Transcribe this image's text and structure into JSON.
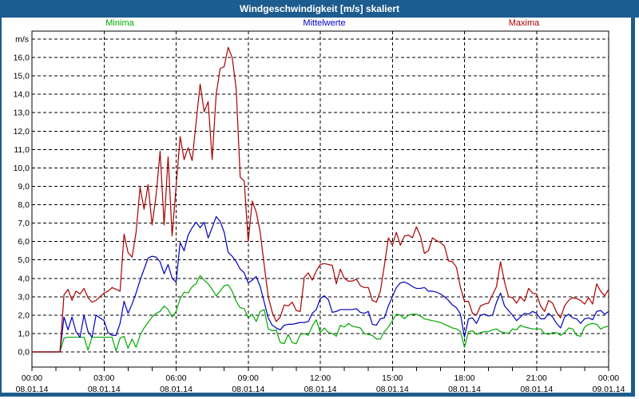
{
  "title_bar": {
    "text": "Windgeschwindigkeit [m/s] skaliert",
    "bg": "#1d5c8e",
    "fg": "#ffffff"
  },
  "legend": [
    {
      "label": "Minima",
      "color": "#00a800"
    },
    {
      "label": "Mittelwerte",
      "color": "#0000c0"
    },
    {
      "label": "Maxima",
      "color": "#a80000"
    }
  ],
  "chart_data": {
    "type": "line",
    "title": "Windgeschwindigkeit [m/s] skaliert",
    "ylabel": "m/s",
    "ylim": [
      0,
      17
    ],
    "ytick_step": 1.0,
    "grid": "dashed",
    "legend_position": "top",
    "y_axis": {
      "unit_label": "m/s",
      "ticks": [
        "16,0",
        "15,0",
        "14,0",
        "13,0",
        "12,0",
        "11,0",
        "10,0",
        "9,0",
        "8,0",
        "7,0",
        "6,0",
        "5,0",
        "4,0",
        "3,0",
        "2,0",
        "1,0",
        "0,0"
      ]
    },
    "x_axis": {
      "hours_span": 24,
      "sample_interval_minutes": 10,
      "ticks": [
        {
          "hour": 0,
          "time": "00:00",
          "date": "08.01.14"
        },
        {
          "hour": 3,
          "time": "03:00",
          "date": "08.01.14"
        },
        {
          "hour": 6,
          "time": "06:00",
          "date": "08.01.14"
        },
        {
          "hour": 9,
          "time": "09:00",
          "date": "08.01.14"
        },
        {
          "hour": 12,
          "time": "12:00",
          "date": "08.01.14"
        },
        {
          "hour": 15,
          "time": "15:00",
          "date": "08.01.14"
        },
        {
          "hour": 18,
          "time": "18:00",
          "date": "08.01.14"
        },
        {
          "hour": 21,
          "time": "21:00",
          "date": "08.01.14"
        },
        {
          "hour": 24,
          "time": "00:00",
          "date": "09.01.14"
        }
      ]
    },
    "series": [
      {
        "name": "Minima",
        "color": "#00a800",
        "values": [
          0,
          0,
          0,
          0,
          0,
          0,
          0,
          0,
          0.75,
          0.8,
          0.8,
          0.8,
          0.8,
          0.8,
          0.1,
          0.8,
          0.8,
          0.8,
          0.8,
          0.8,
          0.8,
          0.05,
          0.75,
          0.85,
          0.2,
          0.7,
          0.25,
          0.9,
          1.3,
          1.6,
          1.9,
          2.1,
          2.2,
          2.5,
          2.3,
          1.9,
          2.2,
          2.9,
          3.25,
          3.2,
          3.55,
          3.7,
          4.15,
          3.9,
          3.7,
          3.4,
          3.05,
          3.3,
          3.6,
          3.65,
          3.3,
          2.75,
          2.4,
          2.35,
          1.85,
          2.05,
          1.65,
          2.2,
          2.3,
          1.25,
          1.15,
          1.2,
          0.5,
          0.45,
          0.95,
          0.5,
          0.45,
          0.95,
          1.0,
          0.9,
          1.4,
          1.75,
          1.05,
          1.3,
          1.05,
          1.0,
          0.85,
          1.45,
          1.35,
          1.55,
          1.4,
          1.35,
          1.3,
          1.0,
          0.95,
          0.9,
          0.7,
          0.7,
          1.1,
          1.35,
          1.7,
          2.05,
          2.0,
          1.8,
          2.0,
          2.05,
          2.05,
          1.95,
          1.8,
          1.75,
          1.7,
          1.65,
          1.6,
          1.5,
          1.4,
          1.3,
          1.25,
          1.1,
          0.25,
          1.1,
          1.15,
          0.95,
          1.05,
          1.1,
          1.1,
          1.2,
          1.25,
          1.1,
          1.05,
          1.0,
          1.25,
          1.2,
          1.45,
          1.35,
          1.3,
          1.25,
          1.25,
          1.25,
          1.0,
          0.95,
          1.05,
          1.05,
          0.9,
          1.05,
          1.3,
          1.25,
          0.9,
          0.85,
          1.35,
          1.5,
          1.55,
          1.5,
          1.25,
          1.35,
          1.4
        ]
      },
      {
        "name": "Mittelwerte",
        "color": "#0000c0",
        "values": [
          0,
          0,
          0,
          0,
          0,
          0,
          0,
          0,
          1.9,
          1.2,
          1.9,
          1.1,
          0.8,
          2.0,
          1.1,
          0.8,
          2.0,
          1.85,
          1.7,
          1.05,
          0.9,
          0.9,
          1.55,
          2.75,
          2.1,
          2.6,
          3.2,
          3.9,
          4.5,
          5.1,
          5.2,
          5.15,
          4.9,
          4.25,
          4.75,
          4.0,
          3.8,
          5.95,
          5.5,
          6.35,
          6.75,
          7.05,
          6.75,
          7.05,
          6.2,
          6.75,
          7.35,
          7.1,
          6.5,
          5.4,
          5.2,
          4.9,
          4.5,
          4.3,
          3.75,
          3.9,
          4.1,
          3.55,
          2.7,
          1.85,
          1.45,
          1.3,
          1.2,
          1.45,
          1.5,
          1.5,
          1.55,
          1.6,
          1.6,
          1.65,
          2.1,
          2.3,
          2.9,
          3.05,
          2.85,
          2.15,
          2.2,
          2.3,
          2.3,
          2.3,
          2.3,
          2.35,
          2.15,
          2.1,
          2.2,
          1.5,
          1.45,
          1.8,
          1.85,
          2.5,
          3.0,
          3.5,
          3.75,
          3.8,
          3.7,
          3.55,
          3.45,
          3.45,
          3.5,
          3.3,
          3.3,
          3.25,
          3.15,
          3.0,
          2.8,
          2.55,
          2.4,
          2.05,
          0.8,
          1.8,
          1.85,
          1.55,
          2.0,
          2.05,
          1.95,
          2.0,
          2.7,
          3.2,
          2.5,
          2.25,
          2.0,
          1.7,
          1.9,
          2.1,
          2.05,
          2.2,
          2.1,
          1.8,
          1.8,
          2.1,
          1.9,
          1.55,
          1.3,
          1.9,
          2.05,
          1.85,
          1.8,
          1.55,
          1.8,
          1.85,
          1.75,
          2.2,
          2.25,
          2.05,
          2.2
        ]
      },
      {
        "name": "Maxima",
        "color": "#a80000",
        "values": [
          0,
          0,
          0,
          0,
          0,
          0,
          0,
          0,
          3.1,
          3.4,
          2.8,
          3.3,
          3.15,
          3.45,
          2.95,
          2.7,
          2.8,
          3.0,
          3.2,
          3.3,
          3.5,
          3.4,
          3.3,
          6.4,
          5.4,
          5.15,
          6.5,
          8.95,
          7.75,
          9.1,
          6.9,
          8.5,
          10.9,
          6.9,
          10.6,
          6.3,
          9.0,
          11.7,
          10.45,
          11.1,
          10.4,
          12.5,
          14.55,
          13.05,
          13.6,
          10.45,
          14.0,
          15.4,
          15.5,
          16.55,
          16.0,
          14.3,
          9.5,
          9.3,
          6.0,
          8.2,
          7.6,
          6.5,
          4.7,
          3.0,
          2.15,
          1.65,
          1.9,
          2.55,
          2.5,
          2.7,
          2.25,
          2.2,
          4.05,
          4.3,
          3.9,
          4.4,
          4.75,
          4.8,
          4.75,
          4.7,
          3.7,
          4.5,
          4.0,
          3.85,
          3.85,
          3.95,
          3.6,
          3.5,
          3.5,
          2.8,
          2.7,
          3.3,
          4.7,
          6.2,
          5.8,
          6.5,
          5.8,
          6.3,
          6.35,
          6.2,
          6.8,
          6.3,
          5.35,
          5.5,
          6.2,
          6.05,
          5.95,
          5.75,
          4.95,
          4.9,
          4.6,
          3.5,
          2.75,
          2.75,
          2.1,
          2.0,
          2.5,
          2.6,
          2.65,
          3.1,
          3.55,
          4.9,
          3.8,
          3.0,
          2.95,
          2.65,
          3.0,
          2.75,
          3.45,
          3.2,
          3.15,
          2.5,
          2.2,
          2.8,
          2.65,
          2.15,
          1.85,
          2.5,
          2.8,
          2.95,
          2.9,
          2.8,
          2.6,
          2.95,
          2.6,
          3.7,
          3.3,
          3.05,
          3.4
        ]
      }
    ]
  }
}
